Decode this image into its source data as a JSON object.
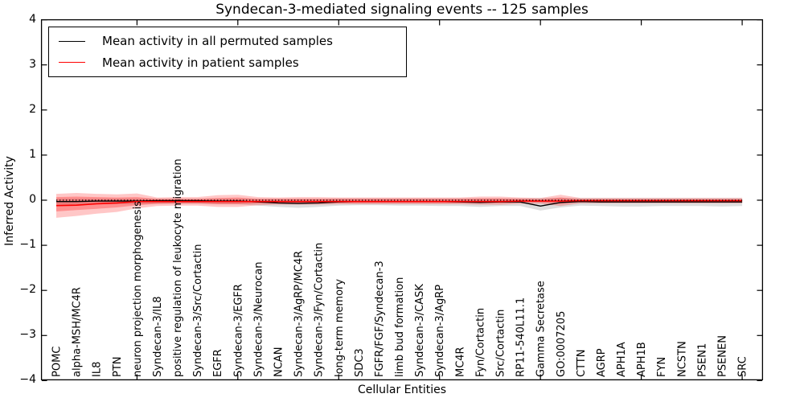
{
  "title": "Syndecan-3-mediated signaling events -- 125 samples",
  "axes": {
    "ylabel": "Inferred Activity",
    "xlabel": "Cellular Entities"
  },
  "chart_data": {
    "type": "line",
    "title": "Syndecan-3-mediated signaling events -- 125 samples",
    "xlabel": "Cellular Entities",
    "ylabel": "Inferred Activity",
    "ylim": [
      -4,
      4
    ],
    "grid": false,
    "legend_position": "upper left",
    "y_ticks": [
      {
        "value": 4,
        "label": "4"
      },
      {
        "value": 3,
        "label": "3"
      },
      {
        "value": 2,
        "label": "2"
      },
      {
        "value": 1,
        "label": "1"
      },
      {
        "value": 0,
        "label": "0"
      },
      {
        "value": -1,
        "label": "−1"
      },
      {
        "value": -2,
        "label": "−2"
      },
      {
        "value": -3,
        "label": "−3"
      },
      {
        "value": -4,
        "label": "−4"
      }
    ],
    "x_numeric_ticks": [
      5,
      10,
      15,
      20,
      25,
      30,
      35
    ],
    "zero_reference_line": 0,
    "categories": [
      "POMC",
      "alpha-MSH/MC4R",
      "IL8",
      "PTN",
      "neuron projection morphogenesis",
      "Syndecan-3/IL8",
      "positive regulation of leukocyte migration",
      "Syndecan-3/Src/Cortactin",
      "EGFR",
      "Syndecan-3/EGFR",
      "Syndecan-3/Neurocan",
      "NCAN",
      "Syndecan-3/AgRP/MC4R",
      "Syndecan-3/Fyn/Cortactin",
      "long-term memory",
      "SDC3",
      "FGFR/FGF/Syndecan-3",
      "limb bud formation",
      "Syndecan-3/CASK",
      "Syndecan-3/AgRP",
      "MC4R",
      "Fyn/Cortactin",
      "Src/Cortactin",
      "RP11-540L11.1",
      "Gamma Secretase",
      "GO:0007205",
      "CTTN",
      "AGRP",
      "APH1A",
      "APH1B",
      "FYN",
      "NCSTN",
      "PSEN1",
      "PSENEN",
      "SRC"
    ],
    "legend": [
      {
        "label": "Mean activity in all permuted samples",
        "color": "#000000"
      },
      {
        "label": "Mean activity in patient samples",
        "color": "#ff0000"
      }
    ],
    "series": [
      {
        "id": "permuted-mean",
        "name": "Mean activity in all permuted samples",
        "color": "#000000",
        "width": 1.4,
        "values": [
          -0.03,
          -0.03,
          -0.02,
          -0.02,
          -0.02,
          -0.01,
          -0.01,
          -0.01,
          -0.02,
          -0.02,
          -0.04,
          -0.06,
          -0.07,
          -0.06,
          -0.04,
          -0.03,
          -0.03,
          -0.03,
          -0.03,
          -0.03,
          -0.04,
          -0.05,
          -0.04,
          -0.04,
          -0.13,
          -0.05,
          -0.03,
          -0.04,
          -0.04,
          -0.04,
          -0.04,
          -0.04,
          -0.04,
          -0.04,
          -0.04
        ]
      },
      {
        "id": "patient-mean",
        "name": "Mean activity in patient samples",
        "color": "#ff0000",
        "width": 1.6,
        "values": [
          -0.12,
          -0.11,
          -0.08,
          -0.06,
          -0.03,
          -0.03,
          -0.03,
          -0.03,
          -0.03,
          -0.03,
          -0.03,
          -0.03,
          -0.03,
          -0.03,
          -0.03,
          -0.03,
          -0.03,
          -0.03,
          -0.03,
          -0.03,
          -0.03,
          -0.03,
          -0.03,
          -0.02,
          -0.02,
          -0.02,
          -0.01,
          -0.01,
          -0.01,
          -0.01,
          -0.01,
          -0.01,
          -0.01,
          -0.01,
          -0.01
        ]
      }
    ],
    "bands": [
      {
        "name": "permuted-range",
        "color": "#000000",
        "opacity": 0.13,
        "upper": [
          0.03,
          0.03,
          0.03,
          0.03,
          0.03,
          0.03,
          0.03,
          0.03,
          0.03,
          0.03,
          0.03,
          0.03,
          0.03,
          0.03,
          0.04,
          0.04,
          0.04,
          0.04,
          0.04,
          0.04,
          0.04,
          0.04,
          0.04,
          0.04,
          0.05,
          0.05,
          0.05,
          0.05,
          0.05,
          0.05,
          0.05,
          0.05,
          0.05,
          0.05,
          0.05
        ],
        "lower": [
          -0.1,
          -0.1,
          -0.09,
          -0.09,
          -0.09,
          -0.08,
          -0.08,
          -0.08,
          -0.09,
          -0.09,
          -0.12,
          -0.15,
          -0.17,
          -0.15,
          -0.12,
          -0.11,
          -0.11,
          -0.12,
          -0.12,
          -0.13,
          -0.13,
          -0.15,
          -0.13,
          -0.13,
          -0.23,
          -0.16,
          -0.12,
          -0.13,
          -0.14,
          -0.14,
          -0.13,
          -0.13,
          -0.13,
          -0.14,
          -0.13
        ]
      },
      {
        "name": "patient-outer",
        "color": "#ff0000",
        "opacity": 0.22,
        "upper": [
          0.14,
          0.16,
          0.14,
          0.13,
          0.15,
          0.06,
          0.07,
          0.07,
          0.11,
          0.12,
          0.07,
          0.06,
          0.07,
          0.07,
          0.06,
          0.06,
          0.06,
          0.06,
          0.06,
          0.06,
          0.06,
          0.08,
          0.08,
          0.06,
          0.05,
          0.12,
          0.05,
          0.05,
          0.05,
          0.05,
          0.05,
          0.05,
          0.05,
          0.05,
          0.05
        ],
        "lower": [
          -0.39,
          -0.35,
          -0.3,
          -0.26,
          -0.18,
          -0.13,
          -0.12,
          -0.12,
          -0.15,
          -0.15,
          -0.11,
          -0.1,
          -0.1,
          -0.1,
          -0.09,
          -0.09,
          -0.09,
          -0.09,
          -0.09,
          -0.09,
          -0.09,
          -0.1,
          -0.1,
          -0.08,
          -0.08,
          -0.13,
          -0.07,
          -0.07,
          -0.07,
          -0.07,
          -0.07,
          -0.07,
          -0.07,
          -0.07,
          -0.07
        ]
      },
      {
        "name": "patient-inner",
        "color": "#ff0000",
        "opacity": 0.28,
        "upper": [
          0.07,
          0.08,
          0.07,
          0.06,
          0.07,
          0.03,
          0.03,
          0.03,
          0.05,
          0.06,
          0.03,
          0.03,
          0.03,
          0.03,
          0.03,
          0.03,
          0.03,
          0.03,
          0.03,
          0.03,
          0.03,
          0.04,
          0.04,
          0.03,
          0.02,
          0.06,
          0.02,
          0.02,
          0.02,
          0.02,
          0.02,
          0.02,
          0.02,
          0.02,
          0.02
        ],
        "lower": [
          -0.25,
          -0.22,
          -0.19,
          -0.16,
          -0.11,
          -0.08,
          -0.07,
          -0.07,
          -0.09,
          -0.09,
          -0.07,
          -0.06,
          -0.06,
          -0.06,
          -0.06,
          -0.06,
          -0.06,
          -0.06,
          -0.06,
          -0.06,
          -0.06,
          -0.06,
          -0.06,
          -0.05,
          -0.05,
          -0.08,
          -0.04,
          -0.04,
          -0.04,
          -0.04,
          -0.04,
          -0.04,
          -0.04,
          -0.04,
          -0.04
        ]
      }
    ]
  }
}
